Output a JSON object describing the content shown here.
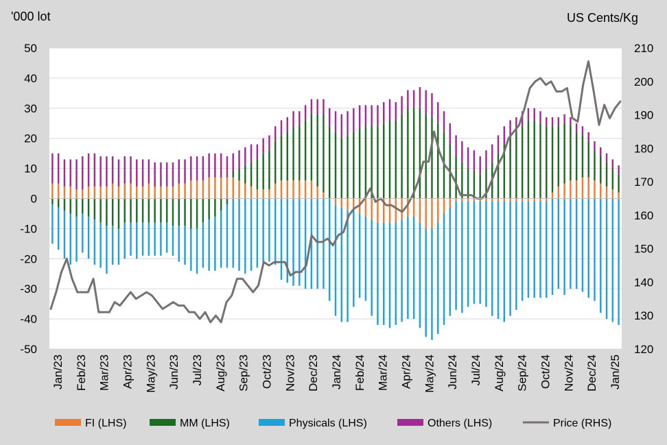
{
  "chart_data": {
    "type": "bar",
    "stacked": true,
    "left_axis_unit": "'000 lot",
    "right_axis_unit": "US Cents/Kg",
    "y_left": {
      "min": -50,
      "max": 50,
      "step": 10,
      "ticks": [
        "50",
        "40",
        "30",
        "20",
        "10",
        "0",
        "-10",
        "-20",
        "-30",
        "-40",
        "-50"
      ]
    },
    "y_right": {
      "min": 120,
      "max": 210,
      "step": 10,
      "ticks": [
        "210",
        "200",
        "190",
        "180",
        "170",
        "160",
        "150",
        "140",
        "130",
        "120"
      ]
    },
    "x_month_labels": [
      "Jan/23",
      "Feb/23",
      "Mar/23",
      "Apr/23",
      "May/23",
      "Jun/23",
      "Jul/23",
      "Aug/23",
      "Sep/23",
      "Oct/23",
      "Nov/23",
      "Dec/23",
      "Jan/24",
      "Feb/24",
      "Mar/24",
      "Apr/24",
      "May/24",
      "Jun/24",
      "Jul/24",
      "Aug/24",
      "Sep/24",
      "Oct/24",
      "Nov/24",
      "Dec/24",
      "Jan/25"
    ],
    "gridlines": true,
    "legend_position": "bottom",
    "series": [
      {
        "name": "FI (LHS)",
        "axis": "left",
        "kind": "bar",
        "color": "#ed7d31",
        "values": [
          5,
          5,
          4,
          4,
          3,
          3,
          4,
          4,
          4,
          4,
          5,
          4,
          5,
          5,
          4,
          4,
          5,
          4,
          4,
          4,
          4,
          5,
          5,
          6,
          6,
          6,
          7,
          7,
          7,
          7,
          7,
          6,
          5,
          4,
          3,
          3,
          3,
          5,
          6,
          6,
          6,
          6,
          6,
          6,
          4,
          2,
          0,
          -2,
          -3,
          -4,
          -4,
          -5,
          -6,
          -7,
          -8,
          -8,
          -8,
          -8,
          -7,
          -6,
          -6,
          -8,
          -10,
          -10,
          -8,
          -5,
          -3,
          -1,
          -1,
          -1,
          -1,
          -1,
          -1,
          -1,
          -1,
          -1,
          -1,
          -1,
          -1,
          -1,
          -1,
          -1,
          -1,
          2,
          4,
          5,
          6,
          6,
          7,
          7,
          6,
          5,
          4,
          3,
          2
        ]
      },
      {
        "name": "MM (LHS)",
        "axis": "left",
        "kind": "bar",
        "color": "#1e6b24",
        "values": [
          -2,
          -3,
          -4,
          -5,
          -6,
          -5,
          -6,
          -7,
          -8,
          -9,
          -9,
          -10,
          -8,
          -8,
          -8,
          -8,
          -8,
          -8,
          -8,
          -8,
          -9,
          -9,
          -9,
          -10,
          -10,
          -8,
          -7,
          -6,
          -4,
          -2,
          2,
          4,
          6,
          8,
          10,
          12,
          13,
          14,
          15,
          16,
          18,
          18,
          20,
          22,
          24,
          26,
          24,
          22,
          20,
          21,
          22,
          23,
          24,
          24,
          24,
          25,
          26,
          26,
          28,
          30,
          30,
          30,
          28,
          27,
          25,
          22,
          18,
          14,
          12,
          10,
          9,
          8,
          10,
          12,
          15,
          18,
          20,
          22,
          24,
          26,
          26,
          25,
          24,
          22,
          20,
          20,
          18,
          16,
          14,
          12,
          10,
          9,
          8,
          7,
          6
        ]
      },
      {
        "name": "Physicals (LHS)",
        "axis": "left",
        "kind": "bar",
        "color": "#1fa3d6",
        "values": [
          -13,
          -14,
          -16,
          -17,
          -15,
          -13,
          -14,
          -15,
          -15,
          -16,
          -13,
          -12,
          -12,
          -11,
          -12,
          -11,
          -11,
          -11,
          -11,
          -10,
          -10,
          -12,
          -13,
          -14,
          -15,
          -15,
          -17,
          -18,
          -19,
          -21,
          -23,
          -24,
          -25,
          -24,
          -23,
          -22,
          -21,
          -22,
          -27,
          -28,
          -29,
          -29,
          -30,
          -30,
          -30,
          -30,
          -34,
          -37,
          -38,
          -37,
          -32,
          -28,
          -28,
          -32,
          -34,
          -34,
          -35,
          -34,
          -34,
          -34,
          -34,
          -35,
          -36,
          -37,
          -37,
          -37,
          -36,
          -36,
          -37,
          -35,
          -34,
          -34,
          -35,
          -38,
          -39,
          -40,
          -38,
          -36,
          -33,
          -32,
          -32,
          -32,
          -32,
          -32,
          -30,
          -32,
          -30,
          -30,
          -31,
          -33,
          -34,
          -38,
          -40,
          -41,
          -42
        ]
      },
      {
        "name": "Others (LHS)",
        "axis": "left",
        "kind": "bar",
        "color": "#a02b93",
        "values": [
          10,
          10,
          9,
          9,
          10,
          11,
          11,
          11,
          10,
          10,
          9,
          9,
          9,
          9,
          9,
          9,
          8,
          8,
          8,
          8,
          8,
          8,
          8,
          8,
          8,
          8,
          8,
          8,
          8,
          7,
          6,
          6,
          6,
          6,
          5,
          5,
          5,
          5,
          5,
          5,
          5,
          5,
          5,
          5,
          5,
          5,
          6,
          7,
          8,
          8,
          8,
          8,
          7,
          7,
          7,
          7,
          7,
          6,
          6,
          6,
          6,
          7,
          8,
          8,
          7,
          7,
          7,
          7,
          7,
          7,
          7,
          6,
          6,
          6,
          6,
          6,
          6,
          5,
          5,
          4,
          4,
          4,
          3,
          3,
          3,
          3,
          3,
          3,
          3,
          3,
          3,
          3,
          3,
          3,
          3
        ]
      },
      {
        "name": "Price (RHS)",
        "axis": "right",
        "kind": "line",
        "color": "#767171",
        "values": [
          132,
          137,
          143,
          147,
          141,
          137,
          137,
          137,
          141,
          131,
          131,
          131,
          134,
          133,
          135,
          137,
          135,
          136,
          137,
          136,
          134,
          132,
          133,
          134,
          133,
          133,
          131,
          131,
          129,
          131,
          128,
          130,
          128,
          134,
          136,
          141,
          141,
          139,
          137,
          139,
          146,
          145,
          146,
          146,
          146,
          142,
          143,
          143,
          145,
          154,
          152,
          152,
          153,
          151,
          154,
          155,
          160,
          162,
          163,
          165,
          168,
          164,
          165,
          163,
          163,
          162,
          161,
          163,
          166,
          170,
          176,
          176,
          185,
          179,
          175,
          173,
          170,
          166,
          166,
          166,
          165,
          165,
          167,
          171,
          175,
          178,
          183,
          185,
          187,
          192,
          198,
          200,
          201,
          199,
          200,
          197,
          197,
          198,
          189,
          188,
          199,
          206,
          197,
          187,
          193,
          189,
          192,
          194
        ]
      }
    ]
  },
  "legend": {
    "items": [
      {
        "label": "FI (LHS)",
        "color": "#ed7d31",
        "kind": "swatch"
      },
      {
        "label": "MM (LHS)",
        "color": "#1e6b24",
        "kind": "swatch"
      },
      {
        "label": "Physicals (LHS)",
        "color": "#1fa3d6",
        "kind": "swatch"
      },
      {
        "label": "Others (LHS)",
        "color": "#a02b93",
        "kind": "swatch"
      },
      {
        "label": "Price (RHS)",
        "color": "#767171",
        "kind": "line"
      }
    ]
  }
}
